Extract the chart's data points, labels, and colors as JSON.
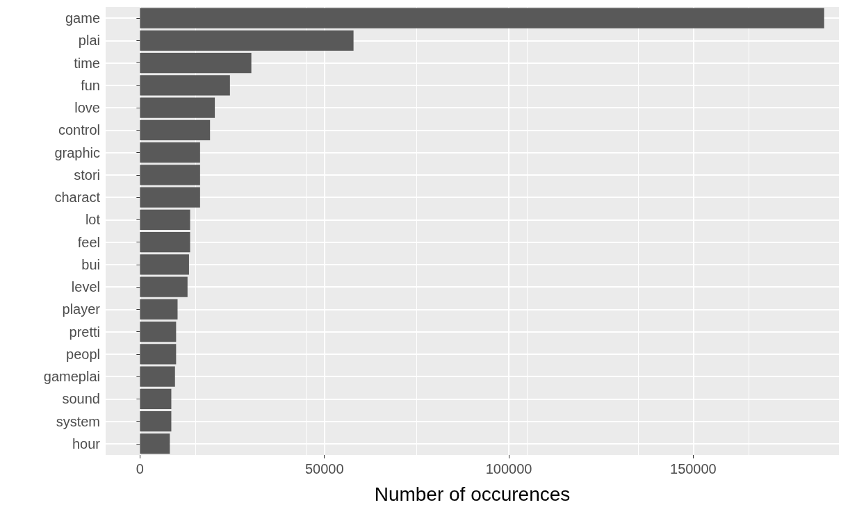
{
  "chart_data": {
    "type": "bar",
    "orientation": "horizontal",
    "xlabel": "Number of occurences",
    "categories": [
      "game",
      "plai",
      "time",
      "fun",
      "love",
      "control",
      "graphic",
      "stori",
      "charact",
      "lot",
      "feel",
      "bui",
      "level",
      "player",
      "pretti",
      "peopl",
      "gameplai",
      "sound",
      "system",
      "hour"
    ],
    "values": [
      185500,
      57900,
      30200,
      24400,
      20300,
      19000,
      16300,
      16300,
      16300,
      13600,
      13600,
      13300,
      12900,
      10200,
      9800,
      9800,
      9500,
      8500,
      8500,
      8100
    ],
    "color": "#595959",
    "xlim": [
      -9300,
      189500
    ],
    "xticks": [
      0,
      50000,
      100000,
      150000
    ],
    "grid": true
  }
}
